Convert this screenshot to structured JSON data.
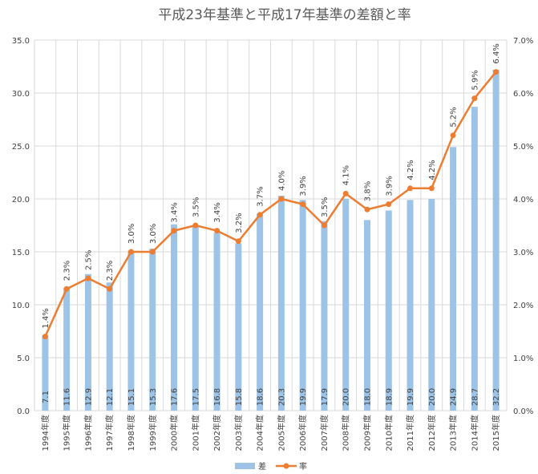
{
  "chart_data": {
    "type": "bar",
    "title": "平成23年基準と平成17年基準の差額と率",
    "categories": [
      "1994年度",
      "1995年度",
      "1996年度",
      "1997年度",
      "1998年度",
      "1999年度",
      "2000年度",
      "2001年度",
      "2002年度",
      "2003年度",
      "2004年度",
      "2005年度",
      "2006年度",
      "2007年度",
      "2008年度",
      "2009年度",
      "2010年度",
      "2011年度",
      "2012年度",
      "2013年度",
      "2014年度",
      "2015年度"
    ],
    "series": [
      {
        "name": "差",
        "type": "bar",
        "axis": "left",
        "color": "#9dc3e6",
        "values": [
          7.1,
          11.6,
          12.9,
          12.1,
          15.1,
          15.3,
          17.6,
          17.5,
          16.8,
          15.8,
          18.6,
          20.3,
          19.9,
          17.9,
          20.0,
          18.0,
          18.9,
          19.9,
          20.0,
          24.9,
          28.7,
          32.2
        ],
        "labels": [
          "7.1",
          "11.6",
          "12.9",
          "12.1",
          "15.1",
          "15.3",
          "17.6",
          "17.5",
          "16.8",
          "15.8",
          "18.6",
          "20.3",
          "19.9",
          "17.9",
          "20.0",
          "18.0",
          "18.9",
          "19.9",
          "20.0",
          "24.9",
          "28.7",
          "32.2"
        ]
      },
      {
        "name": "率",
        "type": "line",
        "axis": "right",
        "color": "#ed7d31",
        "values": [
          1.4,
          2.3,
          2.5,
          2.3,
          3.0,
          3.0,
          3.4,
          3.5,
          3.4,
          3.2,
          3.7,
          4.0,
          3.9,
          3.5,
          4.1,
          3.8,
          3.9,
          4.2,
          4.2,
          5.2,
          5.9,
          6.4
        ],
        "labels": [
          "1.4%",
          "2.3%",
          "2.5%",
          "2.3%",
          "3.0%",
          "3.0%",
          "3.4%",
          "3.5%",
          "3.4%",
          "3.2%",
          "3.7%",
          "4.0%",
          "3.9%",
          "3.5%",
          "4.1%",
          "3.8%",
          "3.9%",
          "4.2%",
          "4.2%",
          "5.2%",
          "5.9%",
          "6.4%"
        ]
      }
    ],
    "ylim": [
      0,
      35
    ],
    "y_ticks": [
      0,
      5,
      10,
      15,
      20,
      25,
      30,
      35
    ],
    "y_tick_labels": [
      "0.0",
      "5.0",
      "10.0",
      "15.0",
      "20.0",
      "25.0",
      "30.0",
      "35.0"
    ],
    "y2lim": [
      0,
      7
    ],
    "y2_ticks": [
      0,
      1,
      2,
      3,
      4,
      5,
      6,
      7
    ],
    "y2_tick_labels": [
      "0.0%",
      "1.0%",
      "2.0%",
      "3.0%",
      "4.0%",
      "5.0%",
      "6.0%",
      "7.0%"
    ],
    "grid": true,
    "legend": "bottom"
  }
}
